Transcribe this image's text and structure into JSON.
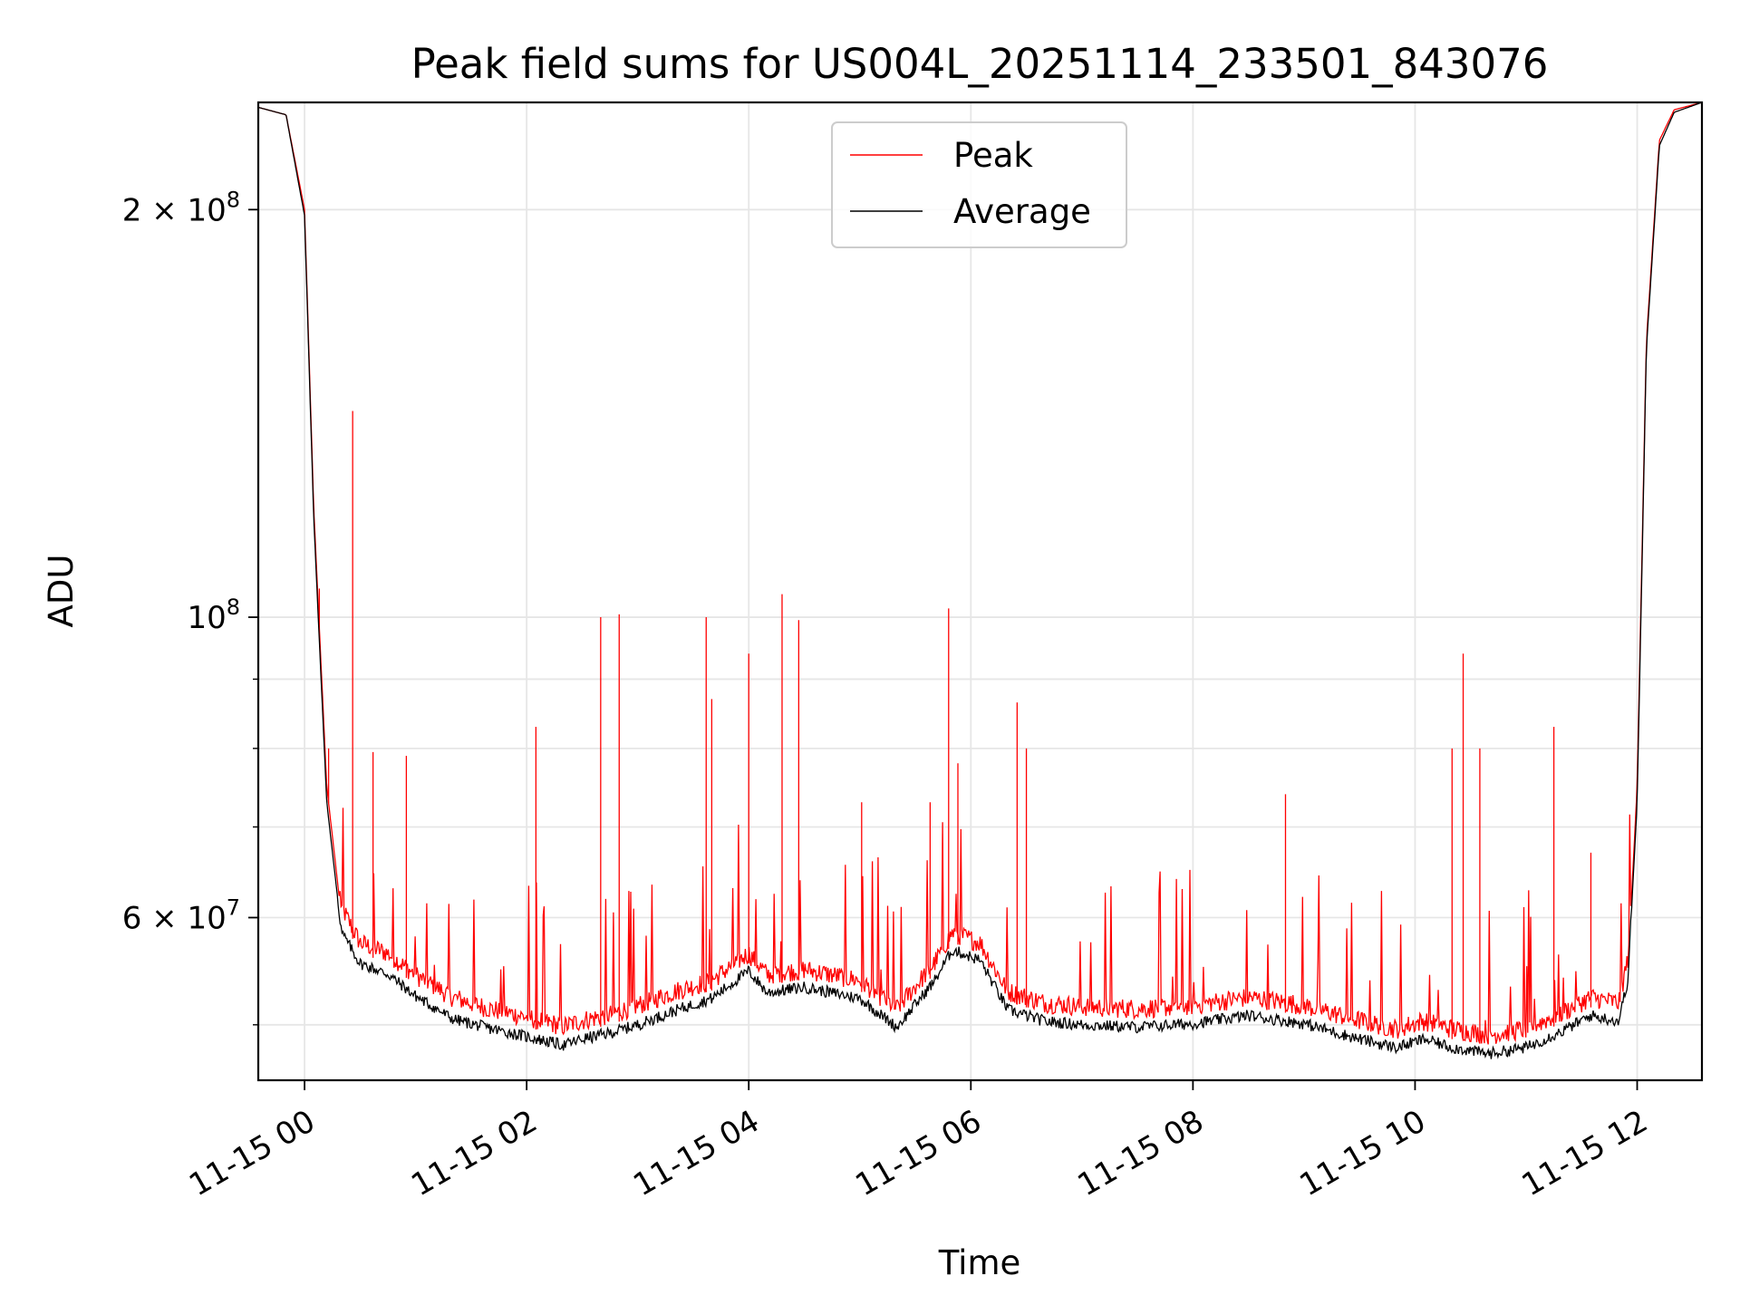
{
  "chart_data": {
    "type": "line",
    "title": "Peak field sums for US004L_20251114_233501_843076",
    "xlabel": "Time",
    "ylabel": "ADU",
    "yscale": "log",
    "xlim": [
      "2025-11-14 23:35",
      "2025-11-15 12:35"
    ],
    "ylim": [
      45500000,
      240000000
    ],
    "grid": true,
    "legend_position": "top-center",
    "x_ticks": [
      "11-15 00",
      "11-15 02",
      "11-15 04",
      "11-15 06",
      "11-15 08",
      "11-15 10",
      "11-15 12"
    ],
    "y_ticks": [
      {
        "value": 200000000,
        "label": "2 × 10^8"
      },
      {
        "value": 100000000,
        "label": "10^8"
      },
      {
        "value": 60000000,
        "label": "6 × 10^7"
      }
    ],
    "series": [
      {
        "name": "Peak",
        "color": "#ff0000",
        "baseline_x": [
          "2025-11-14 23:35",
          "2025-11-14 23:50",
          "2025-11-15 00:00",
          "2025-11-15 00:05",
          "2025-11-15 00:12",
          "2025-11-15 00:20",
          "2025-11-15 00:30",
          "2025-11-15 00:45",
          "2025-11-15 01:00",
          "2025-11-15 01:20",
          "2025-11-15 01:40",
          "2025-11-15 02:00",
          "2025-11-15 02:20",
          "2025-11-15 02:30",
          "2025-11-15 02:45",
          "2025-11-15 03:00",
          "2025-11-15 03:20",
          "2025-11-15 03:40",
          "2025-11-15 04:00",
          "2025-11-15 04:10",
          "2025-11-15 04:30",
          "2025-11-15 05:00",
          "2025-11-15 05:20",
          "2025-11-15 05:40",
          "2025-11-15 05:50",
          "2025-11-15 06:05",
          "2025-11-15 06:20",
          "2025-11-15 06:40",
          "2025-11-15 07:00",
          "2025-11-15 07:30",
          "2025-11-15 08:00",
          "2025-11-15 08:30",
          "2025-11-15 09:00",
          "2025-11-15 09:30",
          "2025-11-15 09:50",
          "2025-11-15 10:05",
          "2025-11-15 10:20",
          "2025-11-15 10:40",
          "2025-11-15 11:00",
          "2025-11-15 11:20",
          "2025-11-15 11:35",
          "2025-11-15 11:50",
          "2025-11-15 11:55",
          "2025-11-15 12:00",
          "2025-11-15 12:05",
          "2025-11-15 12:12",
          "2025-11-15 12:20",
          "2025-11-15 12:35"
        ],
        "baseline_y": [
          238000000,
          235000000,
          200000000,
          120000000,
          75000000,
          60000000,
          56500000,
          55500000,
          53500000,
          51500000,
          50500000,
          49800000,
          49000000,
          49500000,
          50000000,
          50800000,
          52000000,
          53000000,
          55500000,
          53500000,
          54000000,
          53000000,
          50500000,
          54500000,
          57500000,
          56500000,
          52000000,
          51000000,
          50700000,
          50500000,
          50800000,
          51500000,
          50800000,
          49500000,
          48800000,
          49500000,
          48800000,
          48300000,
          48800000,
          50200000,
          51500000,
          51000000,
          55000000,
          75000000,
          160000000,
          225000000,
          237000000,
          240000000
        ],
        "spike_x": [
          "2025-11-15 00:26",
          "2025-11-15 00:13",
          "2025-11-15 00:08",
          "2025-11-15 00:55",
          "2025-11-15 00:37",
          "2025-11-15 02:05",
          "2025-11-15 02:40",
          "2025-11-15 02:50",
          "2025-11-15 03:37",
          "2025-11-15 03:40",
          "2025-11-15 04:00",
          "2025-11-15 04:18",
          "2025-11-15 04:27",
          "2025-11-15 05:01",
          "2025-11-15 05:38",
          "2025-11-15 05:48",
          "2025-11-15 05:53",
          "2025-11-15 06:25",
          "2025-11-15 06:30",
          "2025-11-15 08:50",
          "2025-11-15 10:20",
          "2025-11-15 10:26",
          "2025-11-15 10:35",
          "2025-11-15 11:15",
          "2025-11-15 11:35"
        ],
        "spike_y": [
          142000000,
          80000000,
          105000000,
          79000000,
          79500000,
          83000000,
          100000000,
          100500000,
          100000000,
          87000000,
          94000000,
          104000000,
          99500000,
          73000000,
          73000000,
          101500000,
          78000000,
          86500000,
          80000000,
          74000000,
          80000000,
          94000000,
          80000000,
          83000000,
          67000000
        ]
      },
      {
        "name": "Average",
        "color": "#000000",
        "x": [
          "2025-11-14 23:35",
          "2025-11-14 23:50",
          "2025-11-15 00:00",
          "2025-11-15 00:05",
          "2025-11-15 00:12",
          "2025-11-15 00:20",
          "2025-11-15 00:30",
          "2025-11-15 00:45",
          "2025-11-15 01:00",
          "2025-11-15 01:20",
          "2025-11-15 01:40",
          "2025-11-15 02:00",
          "2025-11-15 02:20",
          "2025-11-15 02:30",
          "2025-11-15 02:45",
          "2025-11-15 03:00",
          "2025-11-15 03:20",
          "2025-11-15 03:40",
          "2025-11-15 04:00",
          "2025-11-15 04:10",
          "2025-11-15 04:30",
          "2025-11-15 05:00",
          "2025-11-15 05:20",
          "2025-11-15 05:40",
          "2025-11-15 05:50",
          "2025-11-15 06:05",
          "2025-11-15 06:20",
          "2025-11-15 06:40",
          "2025-11-15 07:00",
          "2025-11-15 07:30",
          "2025-11-15 08:00",
          "2025-11-15 08:30",
          "2025-11-15 09:00",
          "2025-11-15 09:30",
          "2025-11-15 09:50",
          "2025-11-15 10:05",
          "2025-11-15 10:20",
          "2025-11-15 10:40",
          "2025-11-15 11:00",
          "2025-11-15 11:20",
          "2025-11-15 11:35",
          "2025-11-15 11:50",
          "2025-11-15 11:55",
          "2025-11-15 12:00",
          "2025-11-15 12:05",
          "2025-11-15 12:12",
          "2025-11-15 12:20",
          "2025-11-15 12:35"
        ],
        "y": [
          238000000,
          235000000,
          198000000,
          118000000,
          73000000,
          58500000,
          55500000,
          54500000,
          52500000,
          50500000,
          49700000,
          49000000,
          48300000,
          48800000,
          49300000,
          50000000,
          51200000,
          52300000,
          54800000,
          52800000,
          53300000,
          52300000,
          49800000,
          53800000,
          56800000,
          55800000,
          51300000,
          50300000,
          50000000,
          49800000,
          50100000,
          50800000,
          50100000,
          48800000,
          48100000,
          48800000,
          48100000,
          47600000,
          48100000,
          49500000,
          50800000,
          50300000,
          54000000,
          73000000,
          158000000,
          223000000,
          236000000,
          240000000
        ]
      }
    ]
  }
}
